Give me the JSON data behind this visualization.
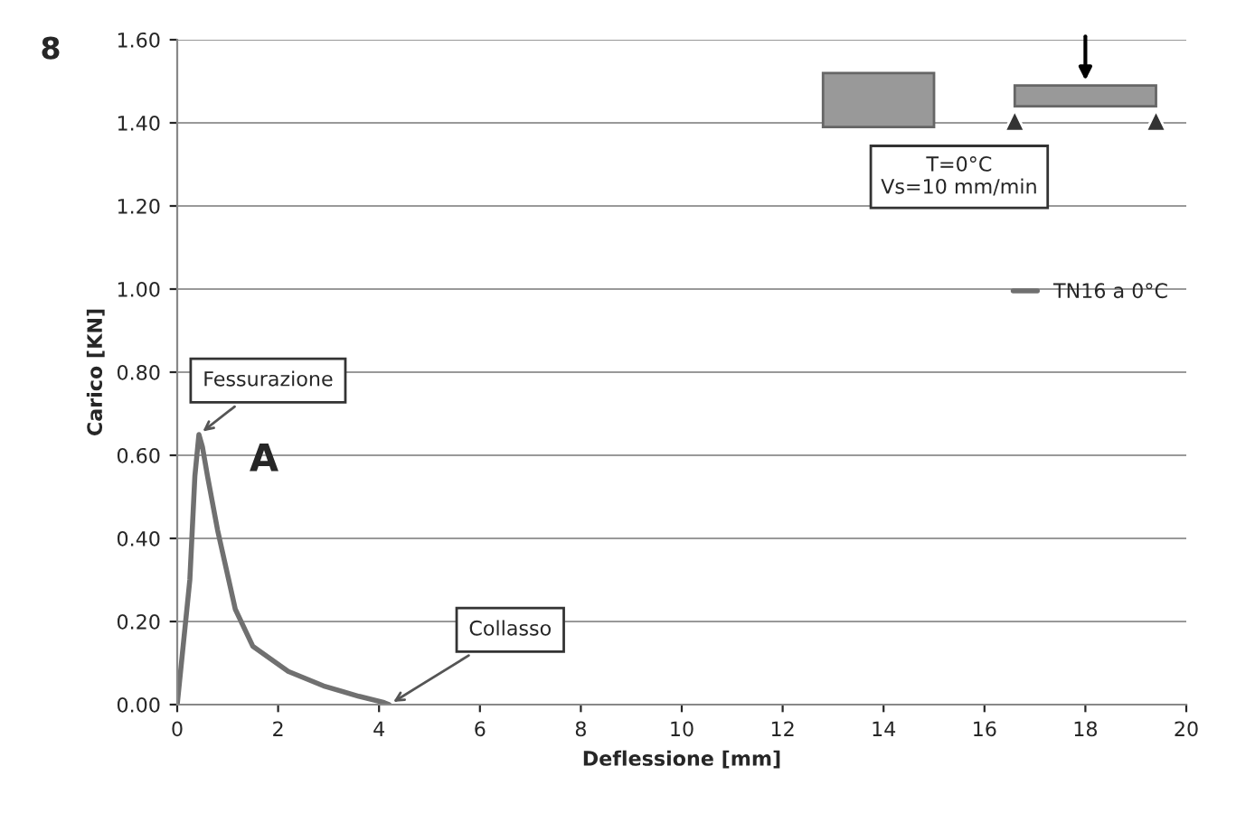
{
  "chart_data": {
    "type": "line",
    "xlabel": "Deflessione [mm]",
    "ylabel": "Carico [KN]",
    "series": [
      {
        "name": "TN16 a 0°C",
        "color": "#707070",
        "x": [
          0,
          0.1,
          0.25,
          0.35,
          0.43,
          0.5,
          0.6,
          0.8,
          1.15,
          1.5,
          2.2,
          2.9,
          3.6,
          4.1,
          4.2
        ],
        "values": [
          0,
          0.12,
          0.3,
          0.55,
          0.65,
          0.62,
          0.55,
          0.42,
          0.23,
          0.14,
          0.08,
          0.045,
          0.02,
          0.005,
          0.0
        ]
      }
    ],
    "xlim": [
      0,
      20
    ],
    "xticks": [
      0,
      2,
      4,
      6,
      8,
      10,
      12,
      14,
      16,
      18,
      20
    ],
    "ylim": [
      0,
      1.6
    ],
    "yticks": [
      {
        "value": 0,
        "label": "0.00"
      },
      {
        "value": 0.2,
        "label": "0.20"
      },
      {
        "value": 0.4,
        "label": "0.40"
      },
      {
        "value": 0.6,
        "label": "0.60"
      },
      {
        "value": 0.8,
        "label": "0.80"
      },
      {
        "value": 1.0,
        "label": "1.00"
      },
      {
        "value": 1.2,
        "label": "1.20"
      },
      {
        "value": 1.4,
        "label": "1.40"
      },
      {
        "value": 1.6,
        "label": "1.60"
      }
    ],
    "grid": "y",
    "legend": "right",
    "marker": "none",
    "line_style": "solid",
    "annotations": [
      {
        "text": "Fessurazione",
        "x": 0.43,
        "y": 0.65
      },
      {
        "text": "Collasso",
        "x": 4.2,
        "y": 0.0
      },
      "A",
      "8",
      "T=0°C\nVs=10 mm/min"
    ]
  }
}
